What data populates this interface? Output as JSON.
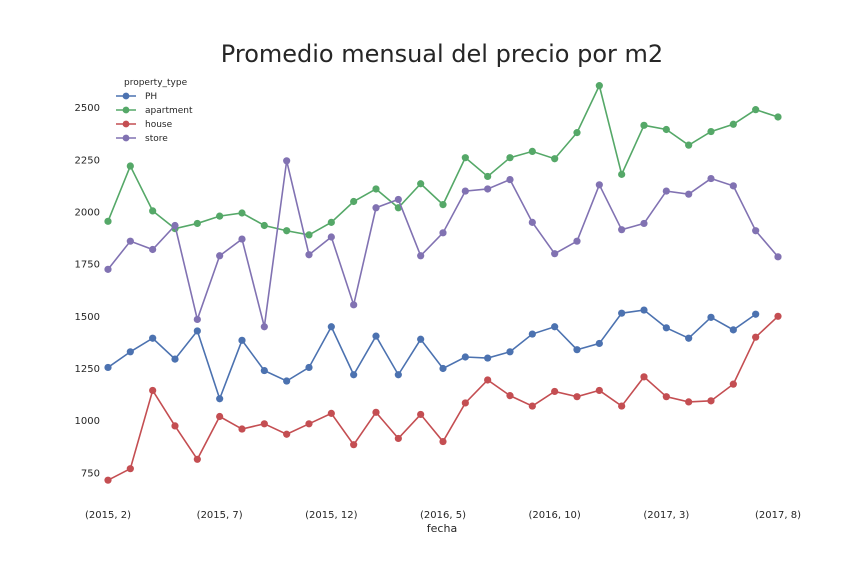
{
  "chart_data": {
    "type": "line",
    "title": "Promedio mensual del precio por m2",
    "xlabel": "fecha",
    "ylabel": "",
    "ylim": [
      620,
      2680
    ],
    "y_ticks": [
      750,
      1000,
      1250,
      1500,
      1750,
      2000,
      2250,
      2500
    ],
    "x": [
      "(2015, 2)",
      "(2015, 3)",
      "(2015, 4)",
      "(2015, 5)",
      "(2015, 6)",
      "(2015, 7)",
      "(2015, 8)",
      "(2015, 9)",
      "(2015, 10)",
      "(2015, 11)",
      "(2015, 12)",
      "(2016, 1)",
      "(2016, 2)",
      "(2016, 3)",
      "(2016, 4)",
      "(2016, 5)",
      "(2016, 6)",
      "(2016, 7)",
      "(2016, 8)",
      "(2016, 9)",
      "(2016, 10)",
      "(2016, 11)",
      "(2016, 12)",
      "(2017, 1)",
      "(2017, 2)",
      "(2017, 3)",
      "(2017, 4)",
      "(2017, 5)",
      "(2017, 6)",
      "(2017, 7)",
      "(2017, 8)"
    ],
    "x_tick_labels": [
      "(2015, 2)",
      "(2015, 7)",
      "(2015, 12)",
      "(2016, 5)",
      "(2016, 10)",
      "(2017, 3)",
      "(2017, 8)"
    ],
    "legend": {
      "title": "property_type",
      "position": "upper-left"
    },
    "grid": false,
    "series": [
      {
        "name": "PH",
        "color": "#4c72b0",
        "values": [
          1255,
          1330,
          1395,
          1295,
          1430,
          1105,
          1385,
          1240,
          1190,
          1255,
          1450,
          1220,
          1405,
          1220,
          1390,
          1250,
          1305,
          1300,
          1330,
          1415,
          1450,
          1340,
          1370,
          1515,
          1530,
          1445,
          1395,
          1495,
          1435,
          1510,
          null
        ]
      },
      {
        "name": "apartment",
        "color": "#55a868",
        "values": [
          1955,
          2220,
          2005,
          1920,
          1945,
          1980,
          1995,
          1935,
          1910,
          1890,
          1950,
          2050,
          2110,
          2020,
          2135,
          2035,
          2260,
          2170,
          2260,
          2290,
          2255,
          2380,
          2605,
          2180,
          2415,
          2395,
          2320,
          2385,
          2420,
          2490,
          2455
        ]
      },
      {
        "name": "house",
        "color": "#c44e52",
        "values": [
          715,
          770,
          1145,
          975,
          815,
          1020,
          960,
          985,
          935,
          985,
          1035,
          885,
          1040,
          915,
          1030,
          900,
          1085,
          1195,
          1120,
          1070,
          1140,
          1115,
          1145,
          1070,
          1210,
          1115,
          1090,
          1095,
          1175,
          1400,
          1500
        ]
      },
      {
        "name": "store",
        "color": "#8172b2",
        "values": [
          1725,
          1860,
          1820,
          1935,
          1485,
          1790,
          1870,
          1450,
          2245,
          1795,
          1880,
          1555,
          2020,
          2060,
          1790,
          1900,
          2100,
          2110,
          2155,
          1950,
          1800,
          1860,
          2130,
          1915,
          1945,
          2100,
          2085,
          2160,
          2125,
          1910,
          1785
        ]
      }
    ]
  }
}
